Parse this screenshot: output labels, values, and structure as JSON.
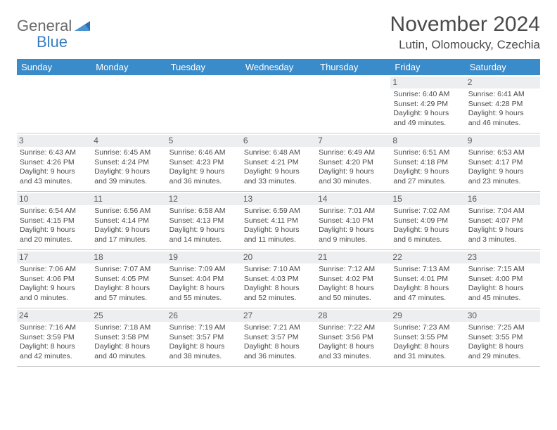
{
  "logo": {
    "word1": "General",
    "word2": "Blue"
  },
  "title": "November 2024",
  "location": "Lutin, Olomoucky, Czechia",
  "colors": {
    "header_bg": "#3a8bc9",
    "header_fg": "#ffffff",
    "daynum_bg": "#eceef0",
    "text": "#4a4a4a",
    "logo_gray": "#6b6b6b",
    "logo_blue": "#3a7ebf"
  },
  "days_of_week": [
    "Sunday",
    "Monday",
    "Tuesday",
    "Wednesday",
    "Thursday",
    "Friday",
    "Saturday"
  ],
  "weeks": [
    [
      {
        "n": "",
        "sr": "",
        "ss": "",
        "dl": ""
      },
      {
        "n": "",
        "sr": "",
        "ss": "",
        "dl": ""
      },
      {
        "n": "",
        "sr": "",
        "ss": "",
        "dl": ""
      },
      {
        "n": "",
        "sr": "",
        "ss": "",
        "dl": ""
      },
      {
        "n": "",
        "sr": "",
        "ss": "",
        "dl": ""
      },
      {
        "n": "1",
        "sr": "Sunrise: 6:40 AM",
        "ss": "Sunset: 4:29 PM",
        "dl": "Daylight: 9 hours and 49 minutes."
      },
      {
        "n": "2",
        "sr": "Sunrise: 6:41 AM",
        "ss": "Sunset: 4:28 PM",
        "dl": "Daylight: 9 hours and 46 minutes."
      }
    ],
    [
      {
        "n": "3",
        "sr": "Sunrise: 6:43 AM",
        "ss": "Sunset: 4:26 PM",
        "dl": "Daylight: 9 hours and 43 minutes."
      },
      {
        "n": "4",
        "sr": "Sunrise: 6:45 AM",
        "ss": "Sunset: 4:24 PM",
        "dl": "Daylight: 9 hours and 39 minutes."
      },
      {
        "n": "5",
        "sr": "Sunrise: 6:46 AM",
        "ss": "Sunset: 4:23 PM",
        "dl": "Daylight: 9 hours and 36 minutes."
      },
      {
        "n": "6",
        "sr": "Sunrise: 6:48 AM",
        "ss": "Sunset: 4:21 PM",
        "dl": "Daylight: 9 hours and 33 minutes."
      },
      {
        "n": "7",
        "sr": "Sunrise: 6:49 AM",
        "ss": "Sunset: 4:20 PM",
        "dl": "Daylight: 9 hours and 30 minutes."
      },
      {
        "n": "8",
        "sr": "Sunrise: 6:51 AM",
        "ss": "Sunset: 4:18 PM",
        "dl": "Daylight: 9 hours and 27 minutes."
      },
      {
        "n": "9",
        "sr": "Sunrise: 6:53 AM",
        "ss": "Sunset: 4:17 PM",
        "dl": "Daylight: 9 hours and 23 minutes."
      }
    ],
    [
      {
        "n": "10",
        "sr": "Sunrise: 6:54 AM",
        "ss": "Sunset: 4:15 PM",
        "dl": "Daylight: 9 hours and 20 minutes."
      },
      {
        "n": "11",
        "sr": "Sunrise: 6:56 AM",
        "ss": "Sunset: 4:14 PM",
        "dl": "Daylight: 9 hours and 17 minutes."
      },
      {
        "n": "12",
        "sr": "Sunrise: 6:58 AM",
        "ss": "Sunset: 4:13 PM",
        "dl": "Daylight: 9 hours and 14 minutes."
      },
      {
        "n": "13",
        "sr": "Sunrise: 6:59 AM",
        "ss": "Sunset: 4:11 PM",
        "dl": "Daylight: 9 hours and 11 minutes."
      },
      {
        "n": "14",
        "sr": "Sunrise: 7:01 AM",
        "ss": "Sunset: 4:10 PM",
        "dl": "Daylight: 9 hours and 9 minutes."
      },
      {
        "n": "15",
        "sr": "Sunrise: 7:02 AM",
        "ss": "Sunset: 4:09 PM",
        "dl": "Daylight: 9 hours and 6 minutes."
      },
      {
        "n": "16",
        "sr": "Sunrise: 7:04 AM",
        "ss": "Sunset: 4:07 PM",
        "dl": "Daylight: 9 hours and 3 minutes."
      }
    ],
    [
      {
        "n": "17",
        "sr": "Sunrise: 7:06 AM",
        "ss": "Sunset: 4:06 PM",
        "dl": "Daylight: 9 hours and 0 minutes."
      },
      {
        "n": "18",
        "sr": "Sunrise: 7:07 AM",
        "ss": "Sunset: 4:05 PM",
        "dl": "Daylight: 8 hours and 57 minutes."
      },
      {
        "n": "19",
        "sr": "Sunrise: 7:09 AM",
        "ss": "Sunset: 4:04 PM",
        "dl": "Daylight: 8 hours and 55 minutes."
      },
      {
        "n": "20",
        "sr": "Sunrise: 7:10 AM",
        "ss": "Sunset: 4:03 PM",
        "dl": "Daylight: 8 hours and 52 minutes."
      },
      {
        "n": "21",
        "sr": "Sunrise: 7:12 AM",
        "ss": "Sunset: 4:02 PM",
        "dl": "Daylight: 8 hours and 50 minutes."
      },
      {
        "n": "22",
        "sr": "Sunrise: 7:13 AM",
        "ss": "Sunset: 4:01 PM",
        "dl": "Daylight: 8 hours and 47 minutes."
      },
      {
        "n": "23",
        "sr": "Sunrise: 7:15 AM",
        "ss": "Sunset: 4:00 PM",
        "dl": "Daylight: 8 hours and 45 minutes."
      }
    ],
    [
      {
        "n": "24",
        "sr": "Sunrise: 7:16 AM",
        "ss": "Sunset: 3:59 PM",
        "dl": "Daylight: 8 hours and 42 minutes."
      },
      {
        "n": "25",
        "sr": "Sunrise: 7:18 AM",
        "ss": "Sunset: 3:58 PM",
        "dl": "Daylight: 8 hours and 40 minutes."
      },
      {
        "n": "26",
        "sr": "Sunrise: 7:19 AM",
        "ss": "Sunset: 3:57 PM",
        "dl": "Daylight: 8 hours and 38 minutes."
      },
      {
        "n": "27",
        "sr": "Sunrise: 7:21 AM",
        "ss": "Sunset: 3:57 PM",
        "dl": "Daylight: 8 hours and 36 minutes."
      },
      {
        "n": "28",
        "sr": "Sunrise: 7:22 AM",
        "ss": "Sunset: 3:56 PM",
        "dl": "Daylight: 8 hours and 33 minutes."
      },
      {
        "n": "29",
        "sr": "Sunrise: 7:23 AM",
        "ss": "Sunset: 3:55 PM",
        "dl": "Daylight: 8 hours and 31 minutes."
      },
      {
        "n": "30",
        "sr": "Sunrise: 7:25 AM",
        "ss": "Sunset: 3:55 PM",
        "dl": "Daylight: 8 hours and 29 minutes."
      }
    ]
  ]
}
